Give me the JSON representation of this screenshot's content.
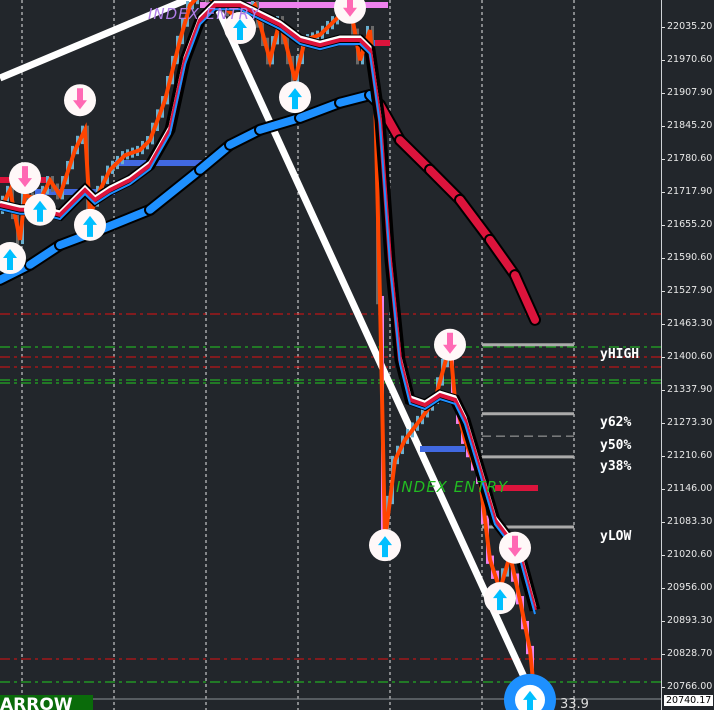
{
  "chart_data": {
    "type": "candlestick",
    "price_axis": {
      "ticks": [
        "22035.20",
        "21970.60",
        "21907.90",
        "21845.20",
        "21780.60",
        "21717.90",
        "21655.20",
        "21590.60",
        "21527.90",
        "21463.30",
        "21400.60",
        "21337.90",
        "21273.30",
        "21210.60",
        "21146.00",
        "21083.30",
        "21020.60",
        "20956.00",
        "20893.30",
        "20828.70",
        "20766.00"
      ],
      "current_price": "20740.17",
      "range": [
        20720,
        22095
      ]
    },
    "price": {
      "x": [
        0,
        2,
        4,
        5,
        8,
        10,
        12,
        15,
        17,
        18,
        20,
        22,
        25,
        28,
        30,
        33,
        36,
        38,
        40,
        43,
        48,
        51,
        54,
        56,
        59,
        61,
        64,
        67,
        70,
        72,
        74,
        75,
        76,
        77,
        79,
        81,
        84,
        87,
        90,
        91,
        93,
        96,
        98,
        100,
        102,
        104,
        106,
        107
      ],
      "y": [
        21685,
        21723,
        21627,
        21713,
        21704,
        21742,
        21713,
        21800,
        21839,
        21675,
        21723,
        21762,
        21790,
        21800,
        21819,
        21896,
        22012,
        22079,
        22099,
        22089,
        22050,
        22079,
        21973,
        22050,
        21935,
        22012,
        22022,
        22050,
        22079,
        21973,
        22031,
        21906,
        21511,
        21049,
        21203,
        21242,
        21280,
        21319,
        21425,
        21319,
        21242,
        21165,
        21011,
        20953,
        21020,
        20933,
        20837,
        20741
      ]
    },
    "fast_ma": {
      "x": [
        0,
        4,
        8,
        12,
        15,
        17,
        19,
        22,
        26,
        30,
        34,
        37,
        40,
        43,
        48,
        52,
        56,
        60,
        64,
        68,
        72,
        74,
        76,
        78,
        80,
        82,
        85,
        88,
        91,
        93,
        96,
        99,
        102,
        104,
        107
      ],
      "y": [
        21694,
        21685,
        21685,
        21675,
        21704,
        21723,
        21704,
        21723,
        21742,
        21771,
        21839,
        21973,
        22050,
        22079,
        22079,
        22060,
        22041,
        22012,
        22002,
        22012,
        22012,
        21993,
        21858,
        21588,
        21396,
        21319,
        21309,
        21328,
        21319,
        21280,
        21184,
        21087,
        21049,
        21020,
        20914
      ]
    },
    "slow_ma": {
      "x": [
        0,
        6,
        12,
        20,
        30,
        40,
        46,
        52,
        60,
        68,
        74,
        76,
        80,
        86,
        92,
        98,
        103,
        107
      ],
      "y": [
        21550,
        21579,
        21617,
        21646,
        21685,
        21762,
        21810,
        21839,
        21862,
        21891,
        21906,
        21887,
        21819,
        21762,
        21704,
        21627,
        21559,
        21473
      ],
      "up_color": "#1e90ff",
      "down_color": "#dc143c"
    },
    "signals": [
      {
        "type": "buy",
        "x": 2,
        "y": 21592
      },
      {
        "type": "buy",
        "x": 18,
        "y": 21656
      },
      {
        "type": "buy",
        "x": 59,
        "y": 21902
      },
      {
        "type": "buy",
        "x": 48,
        "y": 22035
      },
      {
        "type": "buy",
        "x": 77,
        "y": 21039
      },
      {
        "type": "buy",
        "x": 100,
        "y": 20937
      },
      {
        "type": "buy",
        "x": 8,
        "y": 21685
      },
      {
        "type": "buy",
        "x": 106,
        "y": 20741
      },
      {
        "type": "sell",
        "x": 16,
        "y": 21896
      },
      {
        "type": "sell",
        "x": 90,
        "y": 21425
      },
      {
        "type": "sell",
        "x": 70,
        "y": 22074
      },
      {
        "type": "sell",
        "x": 5,
        "y": 21746
      },
      {
        "type": "sell",
        "x": 103,
        "y": 21034
      }
    ],
    "levels": [
      {
        "label": "yHIGH",
        "price": 21425
      },
      {
        "label": "y62%",
        "price": 21292
      },
      {
        "label": "y50%",
        "price": 21249
      },
      {
        "label": "y38%",
        "price": 21209
      },
      {
        "label": "yLOW",
        "price": 21074
      }
    ],
    "annotations": {
      "index_entry_top": "INDEX ENTRY",
      "index_entry_bottom": "INDEX ENTRY",
      "arrow_label": "ARROW",
      "value": "33.9"
    },
    "colors": {
      "bg": "#22262b",
      "zigzag": "#ff4500",
      "bull": "#6ab0d0",
      "bear": "#ee82ee"
    },
    "grid": true
  }
}
